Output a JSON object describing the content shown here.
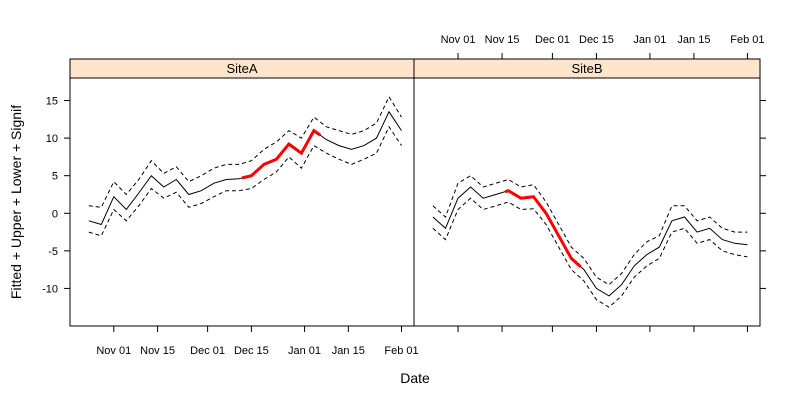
{
  "chart_data": {
    "type": "line",
    "xlabel": "Date",
    "ylabel": "Fitted + Upper + Lower + Signif",
    "ylim": [
      -15,
      18
    ],
    "yticks": [
      -10,
      -5,
      0,
      5,
      10,
      15
    ],
    "xlim_days": [
      "2010-10-18",
      "2011-02-05"
    ],
    "xticks": [
      {
        "date": "2010-11-01",
        "label": "Nov 01"
      },
      {
        "date": "2010-11-15",
        "label": "Nov 15"
      },
      {
        "date": "2010-12-01",
        "label": "Dec 01"
      },
      {
        "date": "2010-12-15",
        "label": "Dec 15"
      },
      {
        "date": "2011-01-01",
        "label": "Jan 01"
      },
      {
        "date": "2011-01-15",
        "label": "Jan 15"
      },
      {
        "date": "2011-02-01",
        "label": "Feb 01"
      }
    ],
    "grid": false,
    "legend": "none",
    "colors": {
      "fitted": "#000000",
      "bounds": "#000000",
      "signif": "#ff0000",
      "strip": "#ffe5cc"
    },
    "panels": [
      {
        "name": "SiteA",
        "dates": [
          "2010-10-24",
          "2010-10-28",
          "2010-11-01",
          "2010-11-05",
          "2010-11-09",
          "2010-11-13",
          "2010-11-17",
          "2010-11-21",
          "2010-11-25",
          "2010-11-29",
          "2010-12-03",
          "2010-12-07",
          "2010-12-11",
          "2010-12-15",
          "2010-12-19",
          "2010-12-23",
          "2010-12-27",
          "2010-12-31",
          "2011-01-04",
          "2011-01-08",
          "2011-01-12",
          "2011-01-16",
          "2011-01-20",
          "2011-01-24",
          "2011-01-28",
          "2011-02-01"
        ],
        "fitted": [
          -1.0,
          -1.5,
          2.2,
          0.5,
          2.7,
          5.0,
          3.5,
          4.5,
          2.5,
          3.0,
          4.0,
          4.5,
          4.6,
          5.0,
          6.5,
          7.2,
          9.2,
          8.0,
          11.0,
          9.8,
          9.0,
          8.5,
          9.0,
          10.0,
          13.5,
          11.0
        ],
        "upper": [
          1.0,
          0.8,
          4.2,
          2.5,
          4.5,
          7.0,
          5.3,
          6.2,
          4.2,
          5.0,
          6.0,
          6.5,
          6.5,
          7.0,
          8.5,
          9.5,
          11.0,
          10.0,
          12.8,
          11.5,
          11.0,
          10.5,
          11.0,
          12.0,
          15.5,
          12.8
        ],
        "lower": [
          -2.5,
          -3.0,
          0.5,
          -1.0,
          1.0,
          3.3,
          2.0,
          2.8,
          0.8,
          1.3,
          2.2,
          3.0,
          3.0,
          3.3,
          4.5,
          5.5,
          7.5,
          6.0,
          9.0,
          8.0,
          7.2,
          6.5,
          7.2,
          8.0,
          11.5,
          9.0
        ],
        "signif_range": [
          "2010-12-12",
          "2011-01-06"
        ]
      },
      {
        "name": "SiteB",
        "dates": [
          "2010-10-24",
          "2010-10-28",
          "2010-11-01",
          "2010-11-05",
          "2010-11-09",
          "2010-11-13",
          "2010-11-17",
          "2010-11-21",
          "2010-11-25",
          "2010-11-29",
          "2010-12-03",
          "2010-12-07",
          "2010-12-11",
          "2010-12-15",
          "2010-12-19",
          "2010-12-23",
          "2010-12-27",
          "2010-12-31",
          "2011-01-04",
          "2011-01-08",
          "2011-01-12",
          "2011-01-16",
          "2011-01-20",
          "2011-01-24",
          "2011-01-28",
          "2011-02-01"
        ],
        "fitted": [
          -0.5,
          -2.0,
          2.0,
          3.5,
          2.0,
          2.5,
          3.0,
          2.0,
          2.2,
          0.0,
          -3.0,
          -6.0,
          -7.5,
          -10.0,
          -11.0,
          -9.5,
          -7.0,
          -5.5,
          -4.5,
          -1.0,
          -0.5,
          -2.5,
          -2.0,
          -3.5,
          -4.0,
          -4.2
        ],
        "upper": [
          1.0,
          -0.5,
          4.0,
          5.0,
          3.5,
          4.0,
          4.5,
          3.5,
          3.8,
          1.5,
          -1.5,
          -4.5,
          -6.0,
          -8.5,
          -9.5,
          -8.0,
          -5.5,
          -3.8,
          -3.0,
          1.0,
          1.0,
          -1.0,
          -0.5,
          -2.0,
          -2.5,
          -2.5
        ],
        "lower": [
          -2.0,
          -3.5,
          0.5,
          2.0,
          0.5,
          1.0,
          1.5,
          0.5,
          0.6,
          -1.5,
          -4.5,
          -7.5,
          -9.0,
          -11.5,
          -12.5,
          -11.0,
          -8.5,
          -7.0,
          -6.0,
          -2.5,
          -2.0,
          -4.0,
          -3.5,
          -5.0,
          -5.5,
          -5.8
        ],
        "signif_range": [
          "2010-11-16",
          "2010-12-10"
        ]
      }
    ]
  }
}
